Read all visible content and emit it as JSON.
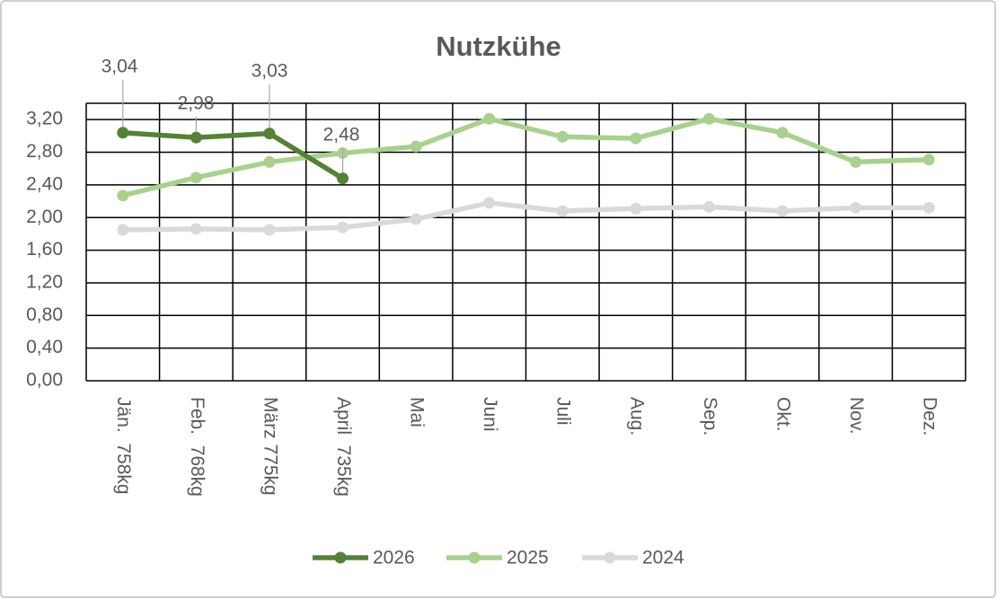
{
  "chart_data": {
    "type": "line",
    "title": "Nutzkühe",
    "categories": [
      "Jän.  758kg",
      "Feb.  768kg",
      "März 775kg",
      "April  735kg",
      "Mai",
      "Juni",
      "Juli",
      "Aug.",
      "Sep.",
      "Okt.",
      "Nov.",
      "Dez."
    ],
    "series": [
      {
        "name": "2026",
        "color": "#548235",
        "values": [
          3.04,
          2.98,
          3.03,
          2.48,
          null,
          null,
          null,
          null,
          null,
          null,
          null,
          null
        ],
        "value_labels": [
          "3,04",
          "2,98",
          "3,03",
          "2,48",
          null,
          null,
          null,
          null,
          null,
          null,
          null,
          null
        ]
      },
      {
        "name": "2025",
        "color": "#a9d18e",
        "values": [
          2.27,
          2.49,
          2.68,
          2.79,
          2.87,
          3.21,
          2.99,
          2.97,
          3.21,
          3.04,
          2.68,
          2.71
        ]
      },
      {
        "name": "2024",
        "color": "#d9d9d9",
        "values": [
          1.85,
          1.86,
          1.85,
          1.88,
          1.98,
          2.18,
          2.08,
          2.11,
          2.13,
          2.08,
          2.12,
          2.12
        ]
      }
    ],
    "ylim": [
      0,
      3.4
    ],
    "yticks": [
      {
        "value": 0,
        "label": "0,00"
      },
      {
        "value": 0.4,
        "label": "0,40"
      },
      {
        "value": 0.8,
        "label": "0,80"
      },
      {
        "value": 1.2,
        "label": "1,20"
      },
      {
        "value": 1.6,
        "label": "1,60"
      },
      {
        "value": 2,
        "label": "2,00"
      },
      {
        "value": 2.4,
        "label": "2,40"
      },
      {
        "value": 2.8,
        "label": "2,80"
      },
      {
        "value": 3.2,
        "label": "3,20"
      }
    ],
    "grid": true,
    "legend": "bottom"
  }
}
